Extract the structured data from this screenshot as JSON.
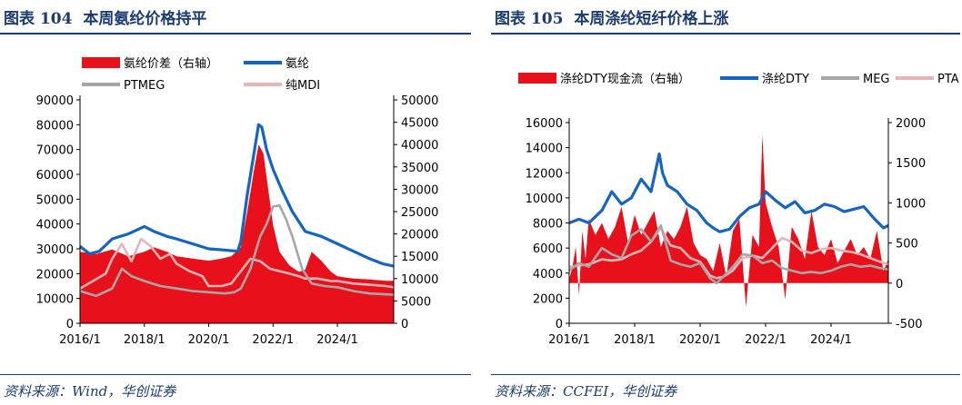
{
  "left": {
    "figure_label": "图表 104",
    "figure_title": "本周氨纶价格持平",
    "source": "资料来源：Wind，华创证券"
  },
  "right": {
    "figure_label": "图表 105",
    "figure_title": "本周涤纶短纤价格上涨",
    "source": "资料来源：CCFEI，华创证券"
  },
  "colors": {
    "red": "#e8101a",
    "blue": "#1565c0",
    "gray": "#a6a6a6",
    "pink": "#e8b4b8",
    "title": "#1a3c73"
  },
  "chart_data": [
    {
      "type": "line",
      "x_ticks": [
        "2016/1",
        "2018/1",
        "2020/1",
        "2022/1",
        "2024/1"
      ],
      "x_range": [
        2016.0,
        2025.75
      ],
      "y_left_range": [
        0,
        90000
      ],
      "y_left_ticks": [
        "0",
        "10000",
        "20000",
        "30000",
        "40000",
        "50000",
        "60000",
        "70000",
        "80000",
        "90000"
      ],
      "y_right_range": [
        0,
        50000
      ],
      "y_right_ticks": [
        "0",
        "5000",
        "10000",
        "15000",
        "20000",
        "25000",
        "30000",
        "35000",
        "40000",
        "45000",
        "50000"
      ],
      "legend": [
        "氨纶价差（右轴）",
        "氨纶",
        "PTMEG",
        "纯MDI"
      ],
      "series": [
        {
          "name": "氨纶价差（右轴）",
          "type": "area",
          "axis": "right",
          "color": "red",
          "x": [
            2016.0,
            2016.5,
            2017.0,
            2017.5,
            2018.0,
            2018.3,
            2018.7,
            2019.0,
            2019.5,
            2020.0,
            2020.4,
            2020.7,
            2021.0,
            2021.2,
            2021.4,
            2021.55,
            2021.7,
            2021.85,
            2022.0,
            2022.2,
            2022.5,
            2022.8,
            2023.0,
            2023.2,
            2023.5,
            2023.8,
            2024.0,
            2024.5,
            2025.0,
            2025.5,
            2025.75
          ],
          "y": [
            16000,
            15500,
            16500,
            15000,
            16000,
            17000,
            16000,
            15000,
            14500,
            14000,
            14500,
            15000,
            17000,
            25000,
            34000,
            40000,
            38000,
            30000,
            22000,
            16000,
            13000,
            11500,
            12000,
            16000,
            14000,
            11500,
            10500,
            10000,
            9800,
            9500,
            9500
          ]
        },
        {
          "name": "氨纶",
          "type": "line",
          "axis": "left",
          "color": "blue",
          "x": [
            2016.0,
            2016.3,
            2016.6,
            2017.0,
            2017.5,
            2018.0,
            2018.3,
            2018.7,
            2019.0,
            2019.5,
            2020.0,
            2020.5,
            2020.9,
            2021.0,
            2021.2,
            2021.4,
            2021.55,
            2021.65,
            2021.8,
            2022.0,
            2022.3,
            2022.6,
            2023.0,
            2023.5,
            2024.0,
            2024.5,
            2025.0,
            2025.4,
            2025.75
          ],
          "y": [
            31000,
            28000,
            29000,
            34000,
            36000,
            39000,
            37000,
            35000,
            34000,
            32000,
            30000,
            29500,
            29000,
            33000,
            52000,
            68000,
            80000,
            79000,
            70000,
            62000,
            53000,
            45000,
            37000,
            35000,
            32000,
            29000,
            26000,
            24000,
            23000
          ]
        },
        {
          "name": "PTMEG",
          "type": "line",
          "axis": "left",
          "color": "gray",
          "x": [
            2016.0,
            2016.5,
            2017.0,
            2017.3,
            2017.6,
            2018.0,
            2018.5,
            2019.0,
            2019.5,
            2020.0,
            2020.5,
            2020.8,
            2021.0,
            2021.3,
            2021.6,
            2021.8,
            2022.0,
            2022.2,
            2022.4,
            2022.6,
            2022.9,
            2023.2,
            2023.6,
            2024.0,
            2024.5,
            2025.0,
            2025.75
          ],
          "y": [
            13000,
            11000,
            14000,
            22000,
            19000,
            17000,
            15000,
            14000,
            13000,
            12500,
            12000,
            12500,
            14000,
            22000,
            35000,
            40000,
            47000,
            47500,
            42000,
            35000,
            22000,
            16000,
            15000,
            14500,
            13000,
            12000,
            11500
          ]
        },
        {
          "name": "纯MDI",
          "type": "line",
          "axis": "left",
          "color": "pink",
          "x": [
            2016.0,
            2016.4,
            2016.8,
            2017.0,
            2017.3,
            2017.6,
            2017.9,
            2018.2,
            2018.5,
            2018.8,
            2019.0,
            2019.4,
            2019.8,
            2020.0,
            2020.4,
            2020.7,
            2021.0,
            2021.3,
            2021.6,
            2021.9,
            2022.2,
            2022.5,
            2022.8,
            2023.0,
            2023.4,
            2023.8,
            2024.0,
            2024.5,
            2025.0,
            2025.5,
            2025.75
          ],
          "y": [
            14000,
            17000,
            20000,
            26000,
            32000,
            25000,
            34000,
            31000,
            26000,
            28000,
            24000,
            21000,
            19000,
            15000,
            15000,
            16000,
            21000,
            26000,
            25000,
            22000,
            21000,
            20000,
            19000,
            18000,
            18000,
            17000,
            17000,
            16000,
            15500,
            15000,
            14500
          ]
        }
      ]
    },
    {
      "type": "line",
      "x_ticks": [
        "2016/1",
        "2018/1",
        "2020/1",
        "2022/1",
        "2024/1"
      ],
      "x_range": [
        2016.0,
        2025.75
      ],
      "y_left_range": [
        0,
        16000
      ],
      "y_left_ticks": [
        "0",
        "2000",
        "4000",
        "6000",
        "8000",
        "10000",
        "12000",
        "14000",
        "16000"
      ],
      "y_right_range": [
        -500,
        2000
      ],
      "y_right_ticks": [
        "-500",
        "0",
        "500",
        "1000",
        "1500",
        "2000"
      ],
      "legend": [
        "涤纶DTY现金流（右轴）",
        "涤纶DTY",
        "MEG",
        "PTA"
      ],
      "series": [
        {
          "name": "涤纶DTY现金流（右轴）",
          "type": "area",
          "axis": "right",
          "color": "red",
          "x": [
            2016.0,
            2016.1,
            2016.2,
            2016.3,
            2016.4,
            2016.5,
            2016.6,
            2016.8,
            2017.0,
            2017.2,
            2017.4,
            2017.6,
            2017.8,
            2018.0,
            2018.2,
            2018.4,
            2018.6,
            2018.8,
            2019.0,
            2019.2,
            2019.4,
            2019.6,
            2019.8,
            2020.0,
            2020.2,
            2020.4,
            2020.6,
            2020.8,
            2021.0,
            2021.2,
            2021.4,
            2021.6,
            2021.8,
            2021.9,
            2022.0,
            2022.2,
            2022.4,
            2022.6,
            2022.8,
            2023.0,
            2023.2,
            2023.4,
            2023.6,
            2023.8,
            2024.0,
            2024.2,
            2024.4,
            2024.6,
            2024.8,
            2025.0,
            2025.2,
            2025.4,
            2025.6,
            2025.75
          ],
          "y": [
            50,
            200,
            450,
            -150,
            650,
            300,
            800,
            600,
            750,
            550,
            700,
            950,
            500,
            850,
            600,
            750,
            900,
            450,
            650,
            550,
            700,
            950,
            500,
            350,
            300,
            150,
            500,
            80,
            650,
            800,
            -300,
            600,
            450,
            1850,
            1000,
            700,
            450,
            -200,
            700,
            550,
            300,
            900,
            450,
            350,
            550,
            250,
            400,
            550,
            350,
            450,
            300,
            650,
            150,
            300
          ]
        },
        {
          "name": "涤纶DTY",
          "type": "line",
          "axis": "left",
          "color": "blue",
          "x": [
            2016.0,
            2016.3,
            2016.6,
            2017.0,
            2017.3,
            2017.6,
            2017.9,
            2018.2,
            2018.5,
            2018.75,
            2018.85,
            2019.0,
            2019.3,
            2019.6,
            2019.9,
            2020.2,
            2020.4,
            2020.6,
            2020.9,
            2021.2,
            2021.5,
            2021.8,
            2022.0,
            2022.3,
            2022.6,
            2022.9,
            2023.2,
            2023.5,
            2023.8,
            2024.1,
            2024.4,
            2024.7,
            2025.0,
            2025.3,
            2025.6,
            2025.75
          ],
          "y": [
            8000,
            8300,
            8000,
            9000,
            10500,
            9500,
            10000,
            11500,
            10500,
            13500,
            12000,
            11000,
            10500,
            9500,
            9000,
            8000,
            7600,
            7300,
            7500,
            8500,
            9200,
            9500,
            10500,
            9800,
            9200,
            9700,
            8800,
            9000,
            9500,
            9300,
            8900,
            9100,
            9300,
            8400,
            7600,
            7800
          ]
        },
        {
          "name": "MEG",
          "type": "line",
          "axis": "left",
          "color": "gray",
          "x": [
            2016.0,
            2016.3,
            2016.6,
            2017.0,
            2017.3,
            2017.6,
            2017.9,
            2018.2,
            2018.5,
            2018.8,
            2019.1,
            2019.4,
            2019.7,
            2020.0,
            2020.3,
            2020.5,
            2020.7,
            2021.0,
            2021.3,
            2021.6,
            2021.9,
            2022.2,
            2022.5,
            2022.8,
            2023.1,
            2023.4,
            2023.7,
            2024.0,
            2024.3,
            2024.6,
            2024.9,
            2025.2,
            2025.5,
            2025.75
          ],
          "y": [
            4200,
            4800,
            4500,
            6000,
            5500,
            5200,
            7000,
            7500,
            6500,
            7800,
            5000,
            4700,
            4500,
            4800,
            3600,
            3200,
            3700,
            4500,
            5500,
            5400,
            4800,
            5000,
            4400,
            4200,
            4000,
            4100,
            4000,
            4200,
            4500,
            4700,
            4500,
            4600,
            4400,
            4300
          ]
        },
        {
          "name": "PTA",
          "type": "line",
          "axis": "left",
          "color": "pink",
          "x": [
            2016.0,
            2016.3,
            2016.6,
            2017.0,
            2017.3,
            2017.6,
            2017.9,
            2018.2,
            2018.5,
            2018.8,
            2019.1,
            2019.4,
            2019.7,
            2020.0,
            2020.3,
            2020.5,
            2020.7,
            2021.0,
            2021.3,
            2021.6,
            2021.9,
            2022.2,
            2022.5,
            2022.8,
            2023.1,
            2023.4,
            2023.7,
            2024.0,
            2024.3,
            2024.6,
            2024.9,
            2025.2,
            2025.5,
            2025.75
          ],
          "y": [
            4500,
            4600,
            4700,
            5100,
            5000,
            5100,
            5500,
            5800,
            6500,
            7600,
            6200,
            6000,
            5200,
            4900,
            3800,
            3600,
            3700,
            4200,
            5200,
            5400,
            5200,
            6000,
            6800,
            6500,
            5800,
            5600,
            5900,
            6000,
            5800,
            5700,
            5500,
            5200,
            4900,
            4700
          ]
        }
      ]
    }
  ]
}
